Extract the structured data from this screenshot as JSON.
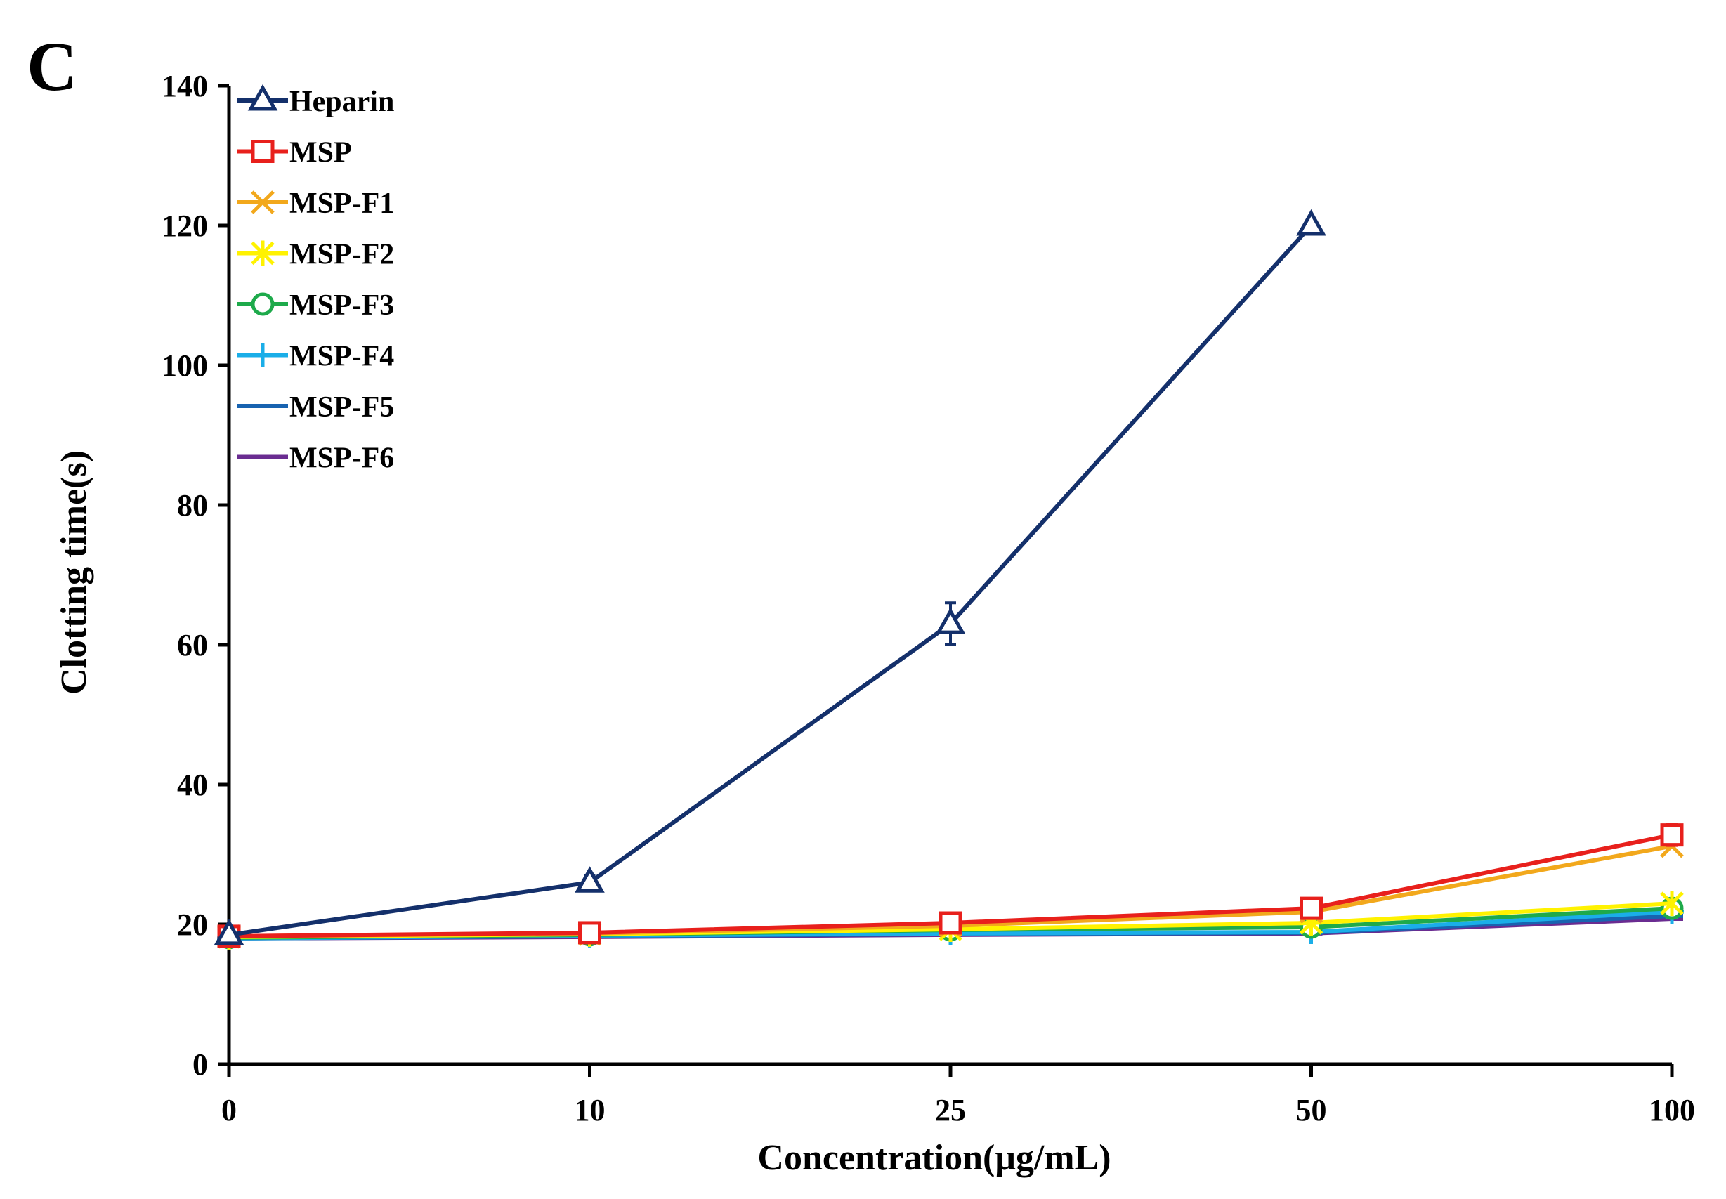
{
  "panel_label": "C",
  "chart_data": {
    "type": "line",
    "title": "",
    "xlabel": "Concentration(μg/mL)",
    "ylabel": "Clotting time(s)",
    "categories": [
      "0",
      "10",
      "25",
      "50",
      "100"
    ],
    "ylim": [
      0,
      140
    ],
    "yticks": [
      0,
      20,
      40,
      60,
      80,
      100,
      120,
      140
    ],
    "ytick_labels": [
      "0",
      "20",
      "40",
      "60",
      "80",
      "100",
      "120",
      "140"
    ],
    "grid": false,
    "legend_position": "top-left",
    "series": [
      {
        "name": "Heparin",
        "color": "#14306b",
        "marker": "triangle",
        "values": [
          18.5,
          26,
          63,
          120,
          null
        ],
        "errors": [
          0,
          1,
          3,
          0,
          0
        ]
      },
      {
        "name": "MSP",
        "color": "#e8201c",
        "marker": "square",
        "values": [
          18.3,
          18.8,
          20.2,
          22.3,
          32.8
        ],
        "errors": [
          0,
          0,
          0,
          0,
          1.5
        ]
      },
      {
        "name": "MSP-F1",
        "color": "#f2a81c",
        "marker": "x",
        "values": [
          18.3,
          18.7,
          19.8,
          21.8,
          31.2
        ],
        "errors": [
          0,
          0,
          0,
          0,
          0
        ]
      },
      {
        "name": "MSP-F2",
        "color": "#fff200",
        "marker": "asterisk",
        "values": [
          18.2,
          18.6,
          19.3,
          20.2,
          23.0
        ],
        "errors": [
          0,
          0,
          0,
          0,
          0
        ]
      },
      {
        "name": "MSP-F3",
        "color": "#1eaa4b",
        "marker": "circle",
        "values": [
          18.1,
          18.5,
          19.2,
          19.6,
          22.3
        ],
        "errors": [
          0,
          0,
          0,
          0,
          0
        ]
      },
      {
        "name": "MSP-F4",
        "color": "#1aaee8",
        "marker": "plus",
        "values": [
          18.0,
          18.4,
          18.7,
          18.9,
          21.8
        ],
        "errors": [
          0,
          0,
          0,
          0,
          0.8
        ]
      },
      {
        "name": "MSP-F5",
        "color": "#1863b0",
        "marker": "dash",
        "values": [
          18.0,
          18.3,
          18.6,
          18.8,
          21.2
        ],
        "errors": [
          0,
          0,
          0,
          0,
          0
        ]
      },
      {
        "name": "MSP-F6",
        "color": "#6a2c91",
        "marker": "dash",
        "values": [
          18.0,
          18.2,
          18.5,
          18.7,
          20.8
        ],
        "errors": [
          0,
          0,
          0,
          0,
          0
        ]
      }
    ]
  }
}
